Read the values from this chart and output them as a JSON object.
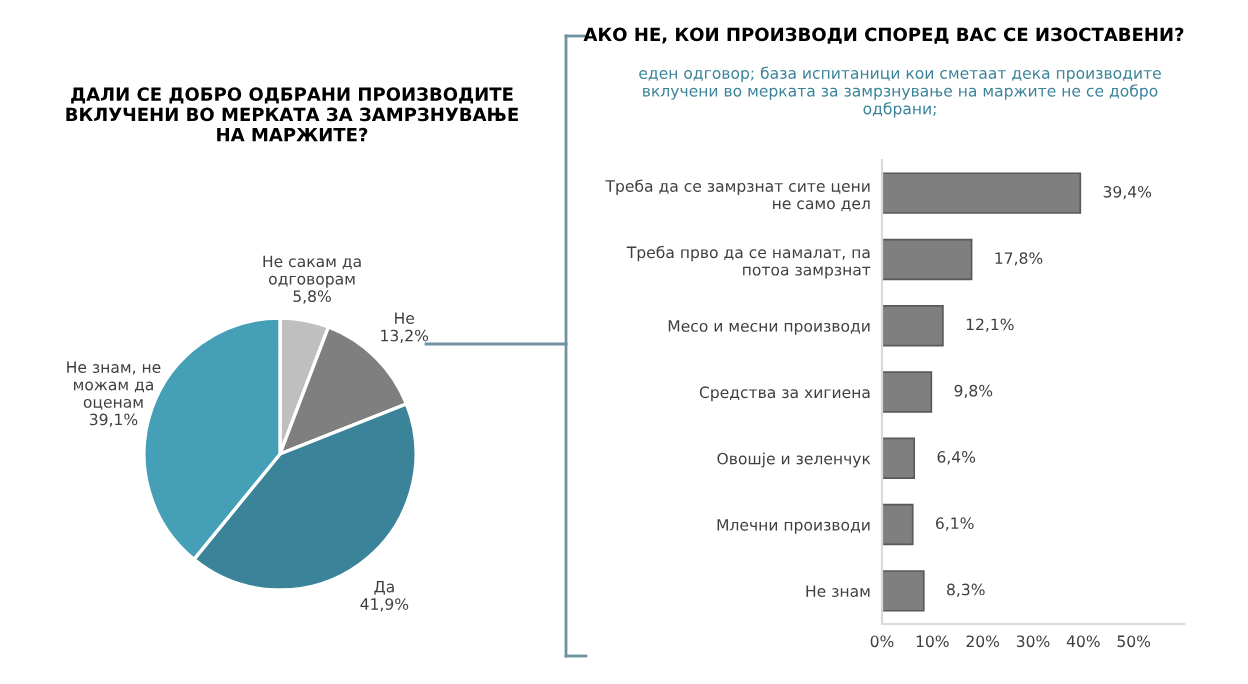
{
  "chart_data": [
    {
      "type": "pie",
      "title": "ДАЛИ СЕ ДОБРО ОДБРАНИ ПРОИЗВОДИТЕ ВКЛУЧЕНИ ВО МЕРКАТА ЗА ЗАМРЗНУВАЊЕ НА МАРЖИТЕ?",
      "categories": [
        "Не сакам да\nодговорам",
        "Не",
        "Да",
        "Не знам, не\nможам да\nоценам"
      ],
      "values": [
        5.8,
        13.2,
        41.9,
        39.1
      ],
      "value_labels": [
        "5,8%",
        "13,2%",
        "41,9%",
        "39,1%"
      ],
      "colors": [
        "#bfbfbf",
        "#7f7f7f",
        "#3a8399",
        "#45a0b7"
      ]
    },
    {
      "type": "bar",
      "orientation": "horizontal",
      "title": "АКО НЕ, КОИ ПРОИЗВОДИ СПОРЕД ВАС СЕ ИЗОСТАВЕНИ?",
      "subtitle": "еден одговор; база испитаници кои сметаат дека производите вклучени во мерката за замрзнување на маржите не се добро одбрани;",
      "categories": [
        "Треба да се замрзнат сите цени\nне само дел",
        "Треба прво да се намалат, па\nпотоа замрзнат",
        "Месо и месни производи",
        "Средства за хигиена",
        "Овошје и зеленчук",
        "Млечни производи",
        "Не знам"
      ],
      "values": [
        39.4,
        17.8,
        12.1,
        9.8,
        6.4,
        6.1,
        8.3
      ],
      "value_labels": [
        "39,4%",
        "17,8%",
        "12,1%",
        "9,8%",
        "6,4%",
        "6,1%",
        "8,3%"
      ],
      "color": "#7f7f7f",
      "xlim": [
        0,
        60
      ],
      "xticks": [
        {
          "value": 0,
          "label": "0%"
        },
        {
          "value": 10,
          "label": "10%"
        },
        {
          "value": 20,
          "label": "20%"
        },
        {
          "value": 30,
          "label": "30%"
        },
        {
          "value": 40,
          "label": "40%"
        },
        {
          "value": 50,
          "label": "50%"
        }
      ],
      "grid": false,
      "legend": false
    }
  ]
}
